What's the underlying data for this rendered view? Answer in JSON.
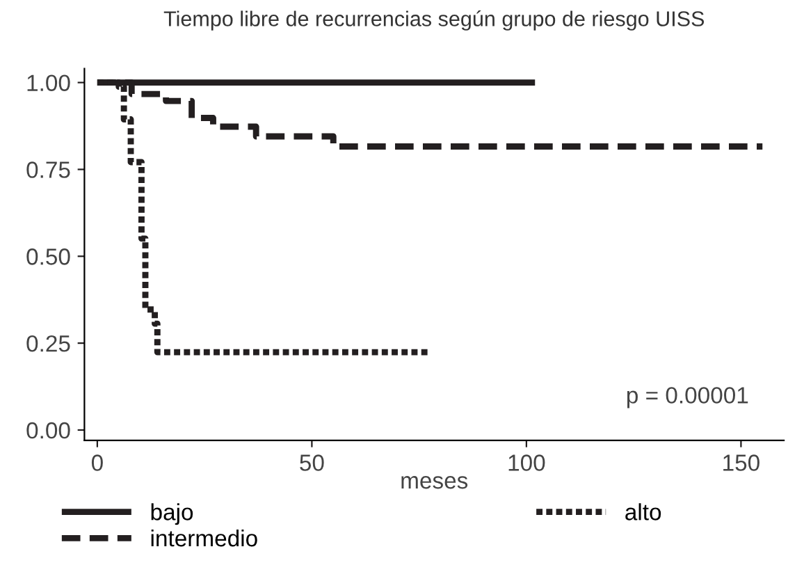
{
  "chart_data": {
    "type": "step",
    "title": "Tiempo libre de recurrencias según grupo de riesgo UISS",
    "xlabel": "meses",
    "xlim": [
      -3,
      160
    ],
    "xticks": [
      0,
      50,
      100,
      150
    ],
    "ylim": [
      -0.03,
      1.04
    ],
    "yticks": [
      {
        "value": 0,
        "label": "0.00"
      },
      {
        "value": 0.25,
        "label": "0.25"
      },
      {
        "value": 0.5,
        "label": "0.50"
      },
      {
        "value": 0.75,
        "label": "0.75"
      },
      {
        "value": 1,
        "label": "1.00"
      }
    ],
    "grid": false,
    "legend": "bottom",
    "marker": "none",
    "annotations": [
      "p = 0.00001"
    ],
    "series": [
      {
        "name": "bajo",
        "color": "#231f20",
        "line_style": "solid",
        "x": [
          0,
          102
        ],
        "values": [
          1.0,
          1.0
        ]
      },
      {
        "name": "intermedio",
        "color": "#231f20",
        "line_style": "dashed",
        "x": [
          0,
          8,
          16,
          22,
          27,
          37,
          55,
          155
        ],
        "values": [
          1.0,
          0.967,
          0.947,
          0.898,
          0.873,
          0.845,
          0.816,
          0.816
        ]
      },
      {
        "name": "alto",
        "color": "#231f20",
        "line_style": "dotted",
        "x": [
          0,
          5,
          6.2,
          7.8,
          10.3,
          11.2,
          13.4,
          14,
          77
        ],
        "values": [
          1.0,
          0.988,
          0.894,
          0.771,
          0.551,
          0.347,
          0.306,
          0.224,
          0.224
        ]
      }
    ]
  }
}
